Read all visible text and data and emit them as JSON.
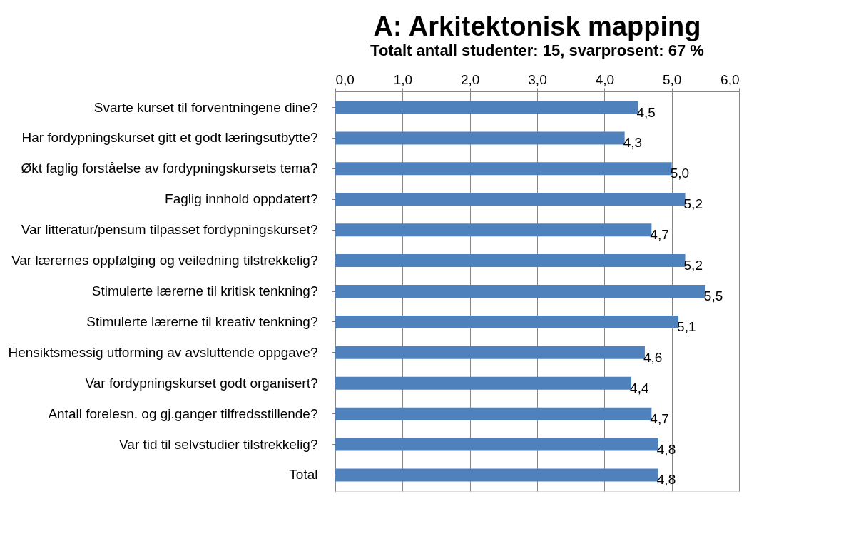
{
  "chart_data": {
    "type": "bar",
    "orientation": "horizontal",
    "title": "A: Arkitektonisk mapping",
    "subtitle": "Totalt antall studenter: 15, svarprosent: 67 %",
    "categories": [
      "Svarte kurset til forventningene dine?",
      "Har fordypningskurset gitt et godt læringsutbytte?",
      "Økt faglig forståelse av fordypningskursets tema?",
      "Faglig innhold  oppdatert?",
      "Var litteratur/pensum tilpasset fordypningskurset?",
      "Var lærernes oppfølging og veiledning tilstrekkelig?",
      "Stimulerte lærerne til kritisk tenkning?",
      "Stimulerte lærerne til kreativ tenkning?",
      "Hensiktsmessig utforming av avsluttende oppgave?",
      "Var fordypningskurset godt organisert?",
      "Antall forelesn. og gj.ganger tilfredsstillende?",
      "Var tid til selvstudier tilstrekkelig?",
      "Total"
    ],
    "values": [
      4.5,
      4.3,
      5.0,
      5.2,
      4.7,
      5.2,
      5.5,
      5.1,
      4.6,
      4.4,
      4.7,
      4.8,
      4.8
    ],
    "value_labels": [
      "4,5",
      "4,3",
      "5,0",
      "5,2",
      "4,7",
      "5,2",
      "5,5",
      "5,1",
      "4,6",
      "4,4",
      "4,7",
      "4,8",
      "4,8"
    ],
    "color": "#4f81bd",
    "xlim": [
      0,
      6
    ],
    "xticks": [
      {
        "value": 0,
        "label": "0,0"
      },
      {
        "value": 1,
        "label": "1,0"
      },
      {
        "value": 2,
        "label": "2,0"
      },
      {
        "value": 3,
        "label": "3,0"
      },
      {
        "value": 4,
        "label": "4,0"
      },
      {
        "value": 5,
        "label": "5,0"
      },
      {
        "value": 6,
        "label": "6,0"
      }
    ],
    "grid": "x"
  }
}
